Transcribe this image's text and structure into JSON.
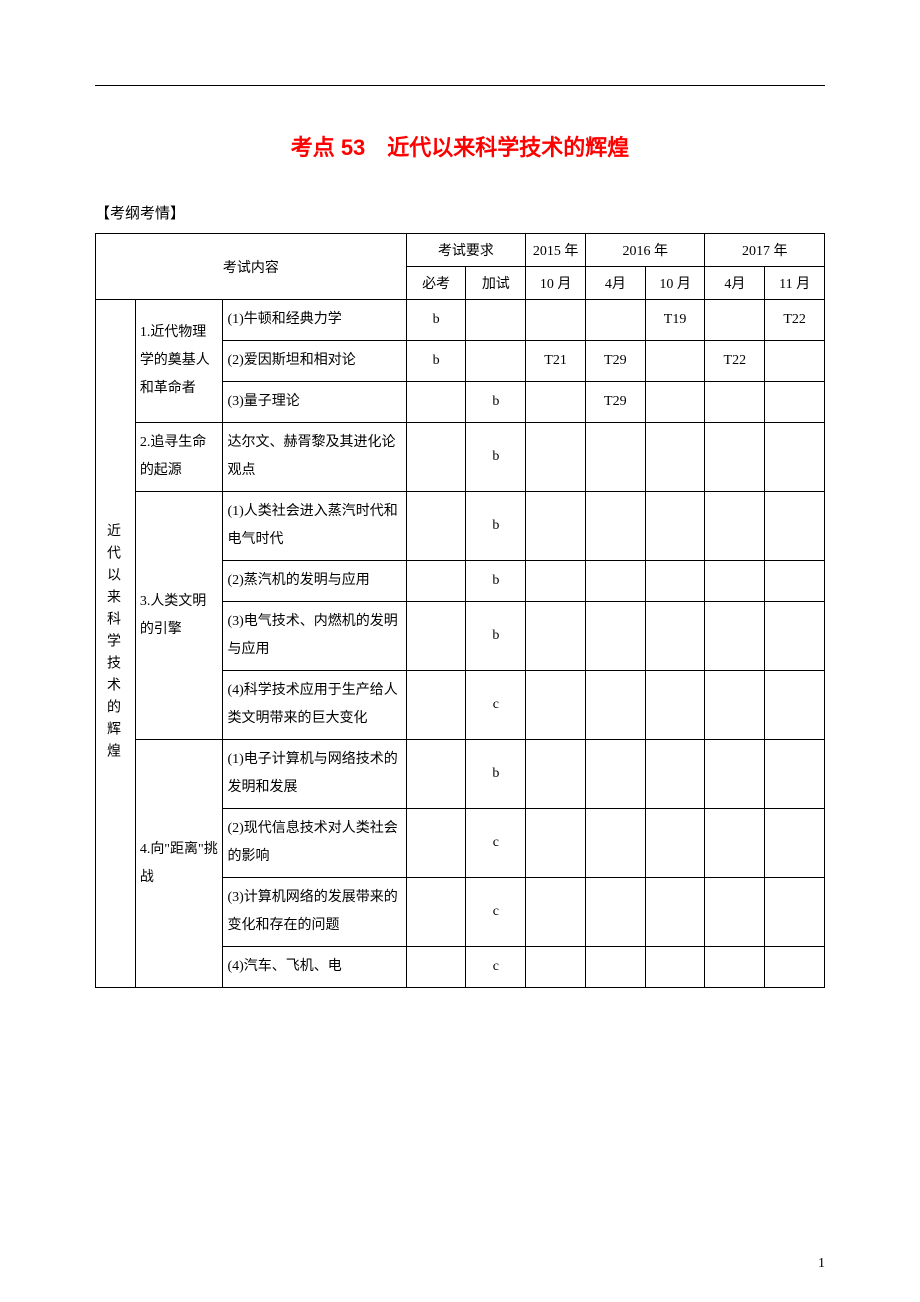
{
  "title": "考点 53　近代以来科学技术的辉煌",
  "section_label": "【考纲考情】",
  "header": {
    "exam_content": "考试内容",
    "exam_req": "考试要求",
    "req_mandatory": "必考",
    "req_extra": "加试",
    "year_2015": "2015 年",
    "year_2016": "2016 年",
    "year_2017": "2017 年",
    "month_oct": "10 月",
    "month_apr": "4月",
    "month_nov": "11 月"
  },
  "unit_title": "近代以来科学技术的辉煌",
  "topics": {
    "t1": "1.近代物理学的奠基人和革命者",
    "t2": "2.追寻生命的起源",
    "t3": "3.人类文明的引擎",
    "t4": "4.向\"距离\"挑战"
  },
  "points": {
    "p1_1": "(1)牛顿和经典力学",
    "p1_2": "(2)爱因斯坦和相对论",
    "p1_3": "(3)量子理论",
    "p2_1": "达尔文、赫胥黎及其进化论观点",
    "p3_1": "(1)人类社会进入蒸汽时代和电气时代",
    "p3_2": "(2)蒸汽机的发明与应用",
    "p3_3": "(3)电气技术、内燃机的发明与应用",
    "p3_4": "(4)科学技术应用于生产给人类文明带来的巨大变化",
    "p4_1": "(1)电子计算机与网络技术的发明和发展",
    "p4_2": "(2)现代信息技术对人类社会的影响",
    "p4_3": "(3)计算机网络的发展带来的变化和存在的问题",
    "p4_4": "(4)汽车、飞机、电"
  },
  "cells": {
    "r1": {
      "mandatory": "b",
      "extra": "",
      "y15_10": "",
      "y16_4": "",
      "y16_10": "T19",
      "y17_4": "",
      "y17_11": "T22"
    },
    "r2": {
      "mandatory": "b",
      "extra": "",
      "y15_10": "T21",
      "y16_4": "T29",
      "y16_10": "",
      "y17_4": "T22",
      "y17_11": ""
    },
    "r3": {
      "mandatory": "",
      "extra": "b",
      "y15_10": "",
      "y16_4": "T29",
      "y16_10": "",
      "y17_4": "",
      "y17_11": ""
    },
    "r4": {
      "mandatory": "",
      "extra": "b",
      "y15_10": "",
      "y16_4": "",
      "y16_10": "",
      "y17_4": "",
      "y17_11": ""
    },
    "r5": {
      "mandatory": "",
      "extra": "b",
      "y15_10": "",
      "y16_4": "",
      "y16_10": "",
      "y17_4": "",
      "y17_11": ""
    },
    "r6": {
      "mandatory": "",
      "extra": "b",
      "y15_10": "",
      "y16_4": "",
      "y16_10": "",
      "y17_4": "",
      "y17_11": ""
    },
    "r7": {
      "mandatory": "",
      "extra": "b",
      "y15_10": "",
      "y16_4": "",
      "y16_10": "",
      "y17_4": "",
      "y17_11": ""
    },
    "r8": {
      "mandatory": "",
      "extra": "c",
      "y15_10": "",
      "y16_4": "",
      "y16_10": "",
      "y17_4": "",
      "y17_11": ""
    },
    "r9": {
      "mandatory": "",
      "extra": "b",
      "y15_10": "",
      "y16_4": "",
      "y16_10": "",
      "y17_4": "",
      "y17_11": ""
    },
    "r10": {
      "mandatory": "",
      "extra": "c",
      "y15_10": "",
      "y16_4": "",
      "y16_10": "",
      "y17_4": "",
      "y17_11": ""
    },
    "r11": {
      "mandatory": "",
      "extra": "c",
      "y15_10": "",
      "y16_4": "",
      "y16_10": "",
      "y17_4": "",
      "y17_11": ""
    },
    "r12": {
      "mandatory": "",
      "extra": "c",
      "y15_10": "",
      "y16_4": "",
      "y16_10": "",
      "y17_4": "",
      "y17_11": ""
    }
  },
  "page_number": "1",
  "styling": {
    "title_color": "#ff0000",
    "title_fontsize": 22,
    "body_fontsize": 14,
    "border_color": "#000000",
    "background_color": "#ffffff",
    "font_family": "SimSun"
  }
}
